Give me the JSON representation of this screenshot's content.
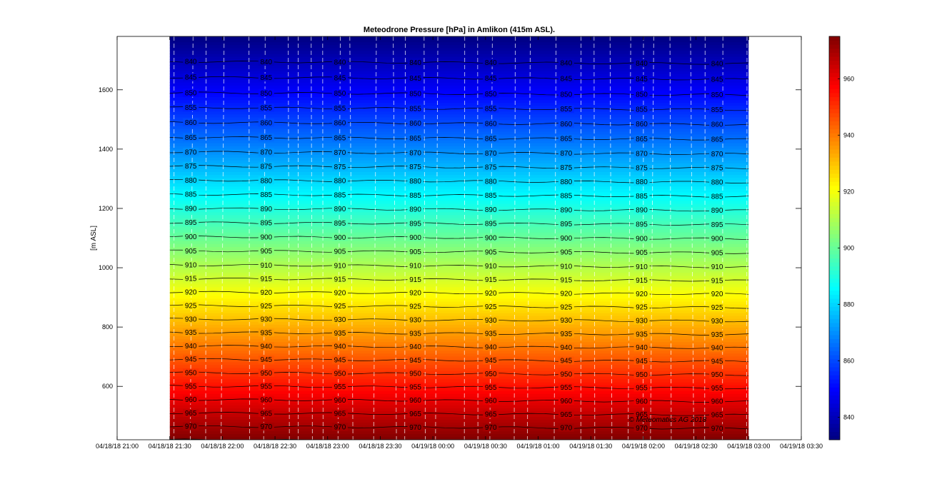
{
  "chart_data": {
    "type": "heatmap",
    "title": "Meteodrone  Pressure [hPa] in Amlikon (415m ASL).",
    "xlabel": "",
    "ylabel": "[m ASL]",
    "x_ticks": [
      "04/18/18 21:00",
      "04/18/18 21:30",
      "04/18/18 22:00",
      "04/18/18 22:30",
      "04/18/18 23:00",
      "04/18/18 23:30",
      "04/19/18 00:00",
      "04/19/18 00:30",
      "04/19/18 01:00",
      "04/19/18 01:30",
      "04/19/18 02:00",
      "04/19/18 02:30",
      "04/19/18 03:00",
      "04/19/18 03:30"
    ],
    "y_ticks": [
      600,
      800,
      1000,
      1200,
      1400,
      1600
    ],
    "ylim": [
      420,
      1780
    ],
    "x_data_range": [
      "04/18/18 21:30",
      "04/19/18 03:00"
    ],
    "colorbar": {
      "range": [
        832,
        975
      ],
      "ticks": [
        840,
        860,
        880,
        900,
        920,
        940,
        960
      ],
      "colormap": "jet"
    },
    "contour_levels": [
      840,
      845,
      850,
      855,
      860,
      865,
      870,
      875,
      880,
      885,
      890,
      895,
      900,
      905,
      910,
      915,
      920,
      925,
      930,
      935,
      940,
      945,
      950,
      955,
      960,
      965,
      970,
      975
    ],
    "contour_label_columns": [
      "04/18/18 21:42",
      "04/18/18 22:25",
      "04/18/18 23:07",
      "04/18/18 23:50",
      "04/19/18 00:33",
      "04/19/18 01:16",
      "04/19/18 01:59",
      "04/19/18 02:42"
    ],
    "pressure_profile": {
      "altitude_m": [
        420,
        800,
        1000,
        1200,
        1400,
        1600,
        1780
      ],
      "pressure_hpa": [
        975,
        933,
        911,
        890,
        869,
        849,
        832
      ]
    },
    "grid": false,
    "colorbar_position": "right",
    "watermark": "© Meteomatics AG 2018"
  }
}
